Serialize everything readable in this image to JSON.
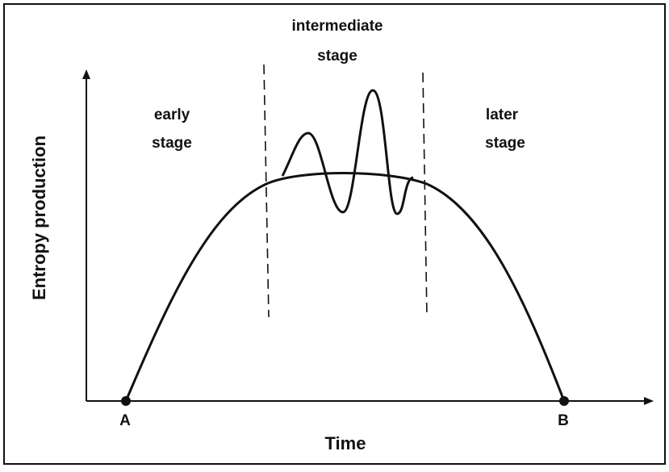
{
  "stages": [
    {
      "lines": [
        "early",
        "stage"
      ]
    },
    {
      "lines": [
        "intermediate",
        "stage"
      ]
    },
    {
      "lines": [
        "later",
        "stage"
      ]
    }
  ],
  "axes": {
    "y_label": "Entropy production",
    "x_label": "Time"
  },
  "points": {
    "start": "A",
    "end": "B"
  }
}
